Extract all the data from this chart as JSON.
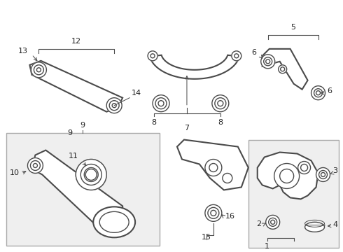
{
  "background_color": "#ffffff",
  "line_color": "#4a4a4a",
  "box_edge_color": "#aaaaaa",
  "figsize": [
    4.9,
    3.6
  ],
  "dpi": 100,
  "label_fontsize": 8,
  "label_color": "#222222"
}
